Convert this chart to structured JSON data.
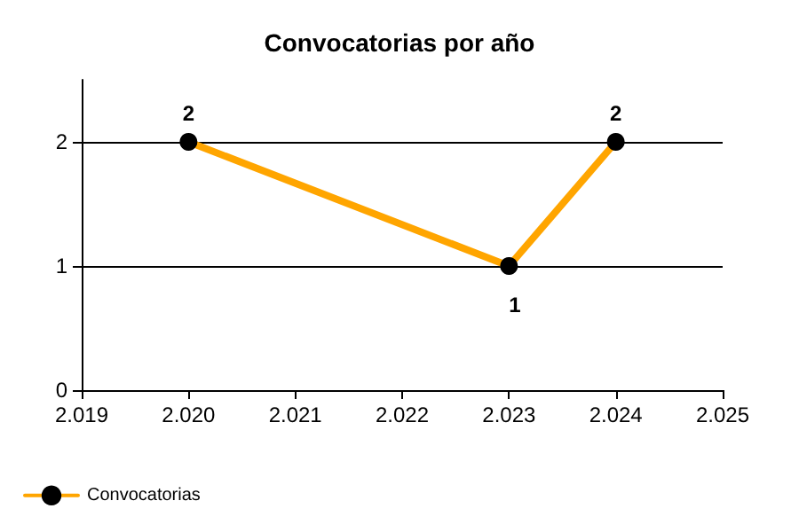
{
  "chart_data": {
    "type": "line",
    "title": "Convocatorias por año",
    "x": [
      2020,
      2023,
      2024
    ],
    "series": [
      {
        "name": "Convocatorias",
        "color": "#ffa500",
        "values": [
          2,
          1,
          2
        ]
      }
    ],
    "xlim": [
      2019,
      2025
    ],
    "xticks": [
      {
        "value": 2019,
        "label": "2.019"
      },
      {
        "value": 2020,
        "label": "2.020"
      },
      {
        "value": 2021,
        "label": "2.021"
      },
      {
        "value": 2022,
        "label": "2.022"
      },
      {
        "value": 2023,
        "label": "2.023"
      },
      {
        "value": 2024,
        "label": "2.024"
      },
      {
        "value": 2025,
        "label": "2.025"
      }
    ],
    "ylim": [
      0,
      2.5
    ],
    "yticks": [
      0,
      1,
      2
    ],
    "grid": "y",
    "legend": "bottom left",
    "marker": "circle",
    "line_style": "solid",
    "data_labels": true
  }
}
